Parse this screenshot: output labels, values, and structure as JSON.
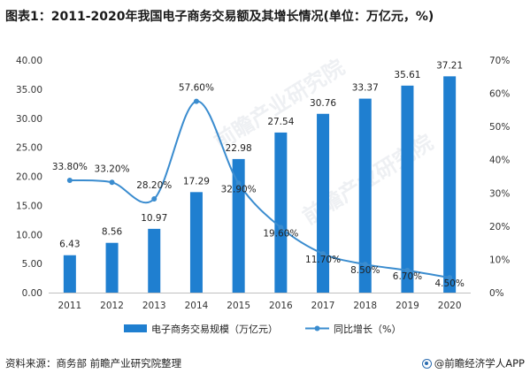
{
  "title": "图表1：2011-2020年我国电子商务交易额及其增长情况(单位：万亿元，%)",
  "footer": {
    "source": "资料来源：商务部 前瞻产业研究院整理",
    "brand": "@前瞻经济学人APP"
  },
  "watermark": {
    "mark1": "前瞻产业研究院",
    "mark2": "前瞻产业研究院"
  },
  "colors": {
    "bar": "#1f7fd0",
    "line": "#3a8ccf",
    "marker": "#3a8ccf",
    "axis_text": "#333333",
    "grid": "#e6e6e6"
  },
  "chart_data": {
    "type": "bar",
    "categories": [
      "2011",
      "2012",
      "2013",
      "2014",
      "2015",
      "2016",
      "2017",
      "2018",
      "2019",
      "2020"
    ],
    "series": [
      {
        "name": "电子商务交易规模（万亿元）",
        "type": "bar",
        "axis": "left",
        "values": [
          6.43,
          8.56,
          10.97,
          17.29,
          22.98,
          27.54,
          30.76,
          33.37,
          35.61,
          37.21
        ],
        "labels": [
          "6.43",
          "8.56",
          "10.97",
          "17.29",
          "22.98",
          "27.54",
          "30.76",
          "33.37",
          "35.61",
          "37.21"
        ]
      },
      {
        "name": "同比增长（%）",
        "type": "line",
        "smooth": true,
        "axis": "right",
        "values": [
          33.8,
          33.2,
          28.2,
          57.6,
          32.9,
          19.6,
          11.7,
          8.5,
          6.7,
          4.5
        ],
        "labels": [
          "33.80%",
          "33.20%",
          "28.20%",
          "57.60%",
          "32.90%",
          "19.60%",
          "11.70%",
          "8.50%",
          "6.70%",
          "4.50%"
        ]
      }
    ],
    "y_left": {
      "min": 0,
      "max": 40,
      "ticks": [
        "0.00",
        "5.00",
        "10.00",
        "15.00",
        "20.00",
        "25.00",
        "30.00",
        "35.00",
        "40.00"
      ]
    },
    "y_right": {
      "min": 0,
      "max": 70,
      "ticks": [
        "0%",
        "10%",
        "20%",
        "30%",
        "40%",
        "50%",
        "60%",
        "70%"
      ]
    },
    "grid": false,
    "legend_placement": "bottom"
  }
}
